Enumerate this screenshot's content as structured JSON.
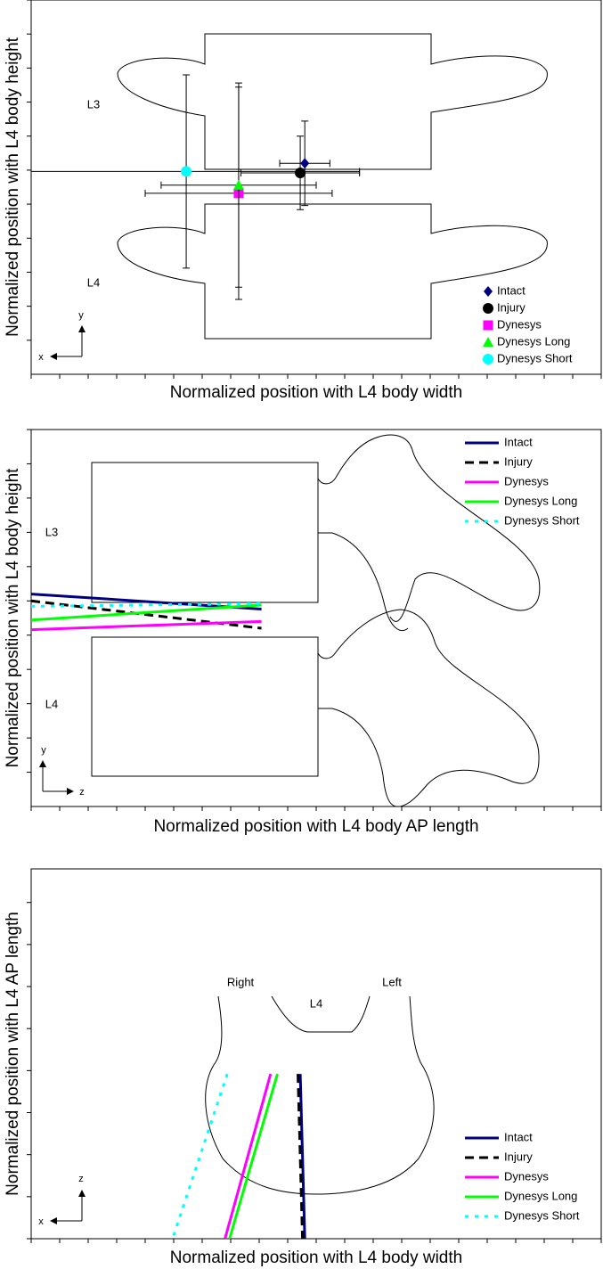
{
  "chart_data": [
    {
      "type": "scatter",
      "x_label": "Normalized position with L4 body width",
      "y_label": "Normalized position with L4 body height",
      "annotations": [
        "L3",
        "L4"
      ],
      "axis_symbols": [
        "x",
        "y"
      ],
      "xlim": [
        -0.75,
        1.75
      ],
      "ylim": [
        -0.25,
        2.5
      ],
      "xticks": [
        -0.75,
        -0.625,
        -0.5,
        -0.375,
        -0.25,
        -0.125,
        0,
        0.125,
        0.25,
        0.375,
        0.5,
        0.625,
        0.75,
        0.875,
        1,
        1.125,
        1.25,
        1.375,
        1.5,
        1.625,
        1.75
      ],
      "yticks": [
        0,
        0.25,
        0.5,
        0.75,
        1,
        1.25,
        1.5,
        1.75,
        2,
        2.25,
        2.5
      ],
      "legend": "lower right",
      "series": [
        {
          "name": "Intact",
          "color": "#000080",
          "marker": "diamond",
          "x": [
            0.45
          ],
          "y": [
            1.3
          ],
          "xerr": [
            0.11
          ],
          "yerr": [
            0.31
          ]
        },
        {
          "name": "Injury",
          "color": "#000000",
          "marker": "circle",
          "x": [
            0.43
          ],
          "y": [
            1.23
          ],
          "xerr": [
            0.26
          ],
          "yerr": [
            0.27
          ]
        },
        {
          "name": "Dynesys",
          "color": "#ff00ff",
          "marker": "square",
          "x": [
            0.16
          ],
          "y": [
            1.08
          ],
          "xerr": [
            0.41
          ],
          "yerr": [
            0.78
          ]
        },
        {
          "name": "Dynesys Long",
          "color": "#00ff00",
          "marker": "triangle",
          "x": [
            0.16
          ],
          "y": [
            1.14
          ],
          "xerr": [
            0.34
          ],
          "yerr": [
            0.75
          ]
        },
        {
          "name": "Dynesys Short",
          "color": "#00ffff",
          "marker": "circle",
          "x": [
            -0.07
          ],
          "y": [
            1.24
          ],
          "xerr": [
            0.76
          ],
          "yerr": [
            0.71
          ]
        }
      ]
    },
    {
      "type": "line",
      "x_label": "Normalized position with L4 body AP length",
      "y_label": "Normalized position with L4 body height",
      "annotations": [
        "L3",
        "L4"
      ],
      "axis_symbols": [
        "z",
        "y"
      ],
      "xlim": [
        -0.25,
        2.25
      ],
      "ylim": [
        -0.25,
        2.5
      ],
      "xticks": [
        -0.25,
        -0.125,
        0,
        0.125,
        0.25,
        0.375,
        0.5,
        0.625,
        0.75,
        0.875,
        1,
        1.125,
        1.25,
        1.375,
        1.5,
        1.625,
        1.75,
        1.875,
        2,
        2.125,
        2.25
      ],
      "yticks": [
        0,
        0.25,
        0.5,
        0.75,
        1,
        1.25,
        1.5,
        1.75,
        2,
        2.25,
        2.5
      ],
      "legend": "upper right",
      "series": [
        {
          "name": "Intact",
          "color": "#000080",
          "dash": "solid",
          "x": [
            -0.25,
            0.76
          ],
          "values": [
            1.3,
            1.19
          ]
        },
        {
          "name": "Injury",
          "color": "#000000",
          "dash": "dashed",
          "x": [
            -0.25,
            0.76
          ],
          "values": [
            1.25,
            1.05
          ]
        },
        {
          "name": "Dynesys",
          "color": "#ff00ff",
          "dash": "solid",
          "x": [
            -0.25,
            0.76
          ],
          "values": [
            1.04,
            1.1
          ]
        },
        {
          "name": "Dynesys Long",
          "color": "#00ff00",
          "dash": "solid",
          "x": [
            -0.25,
            0.76
          ],
          "values": [
            1.11,
            1.22
          ]
        },
        {
          "name": "Dynesys Short",
          "color": "#00ffff",
          "dash": "dotted",
          "x": [
            -0.25,
            0.76
          ],
          "values": [
            1.21,
            1.23
          ]
        }
      ]
    },
    {
      "type": "line",
      "x_label": "Normalized position with L4 body width",
      "y_label": "Normalized position with L4 AP length",
      "annotations": [
        "Right",
        "L4",
        "Left"
      ],
      "axis_symbols": [
        "x",
        "z"
      ],
      "xlim": [
        -0.75,
        1.75
      ],
      "ylim": [
        0,
        2.2
      ],
      "xticks": [
        -0.75,
        -0.625,
        -0.5,
        -0.375,
        -0.25,
        -0.125,
        0,
        0.125,
        0.25,
        0.375,
        0.5,
        0.625,
        0.75,
        0.875,
        1,
        1.125,
        1.25,
        1.375,
        1.5,
        1.625,
        1.75
      ],
      "yticks": [
        0,
        0.25,
        0.5,
        0.75,
        1,
        1.25,
        1.5,
        1.75,
        2
      ],
      "legend": "lower right",
      "series": [
        {
          "name": "Intact",
          "color": "#000080",
          "dash": "solid",
          "x": [
            0.43,
            0.45
          ],
          "values": [
            0.98,
            0
          ]
        },
        {
          "name": "Injury",
          "color": "#000000",
          "dash": "dashed",
          "x": [
            0.42,
            0.44
          ],
          "values": [
            0.98,
            0
          ]
        },
        {
          "name": "Dynesys",
          "color": "#ff00ff",
          "dash": "solid",
          "x": [
            0.3,
            0.1
          ],
          "values": [
            0.98,
            0
          ]
        },
        {
          "name": "Dynesys Long",
          "color": "#00ff00",
          "dash": "solid",
          "x": [
            0.33,
            0.12
          ],
          "values": [
            0.98,
            0
          ]
        },
        {
          "name": "Dynesys Short",
          "color": "#00ffff",
          "dash": "dotted",
          "x": [
            0.11,
            -0.13
          ],
          "values": [
            0.98,
            0
          ]
        }
      ]
    }
  ]
}
